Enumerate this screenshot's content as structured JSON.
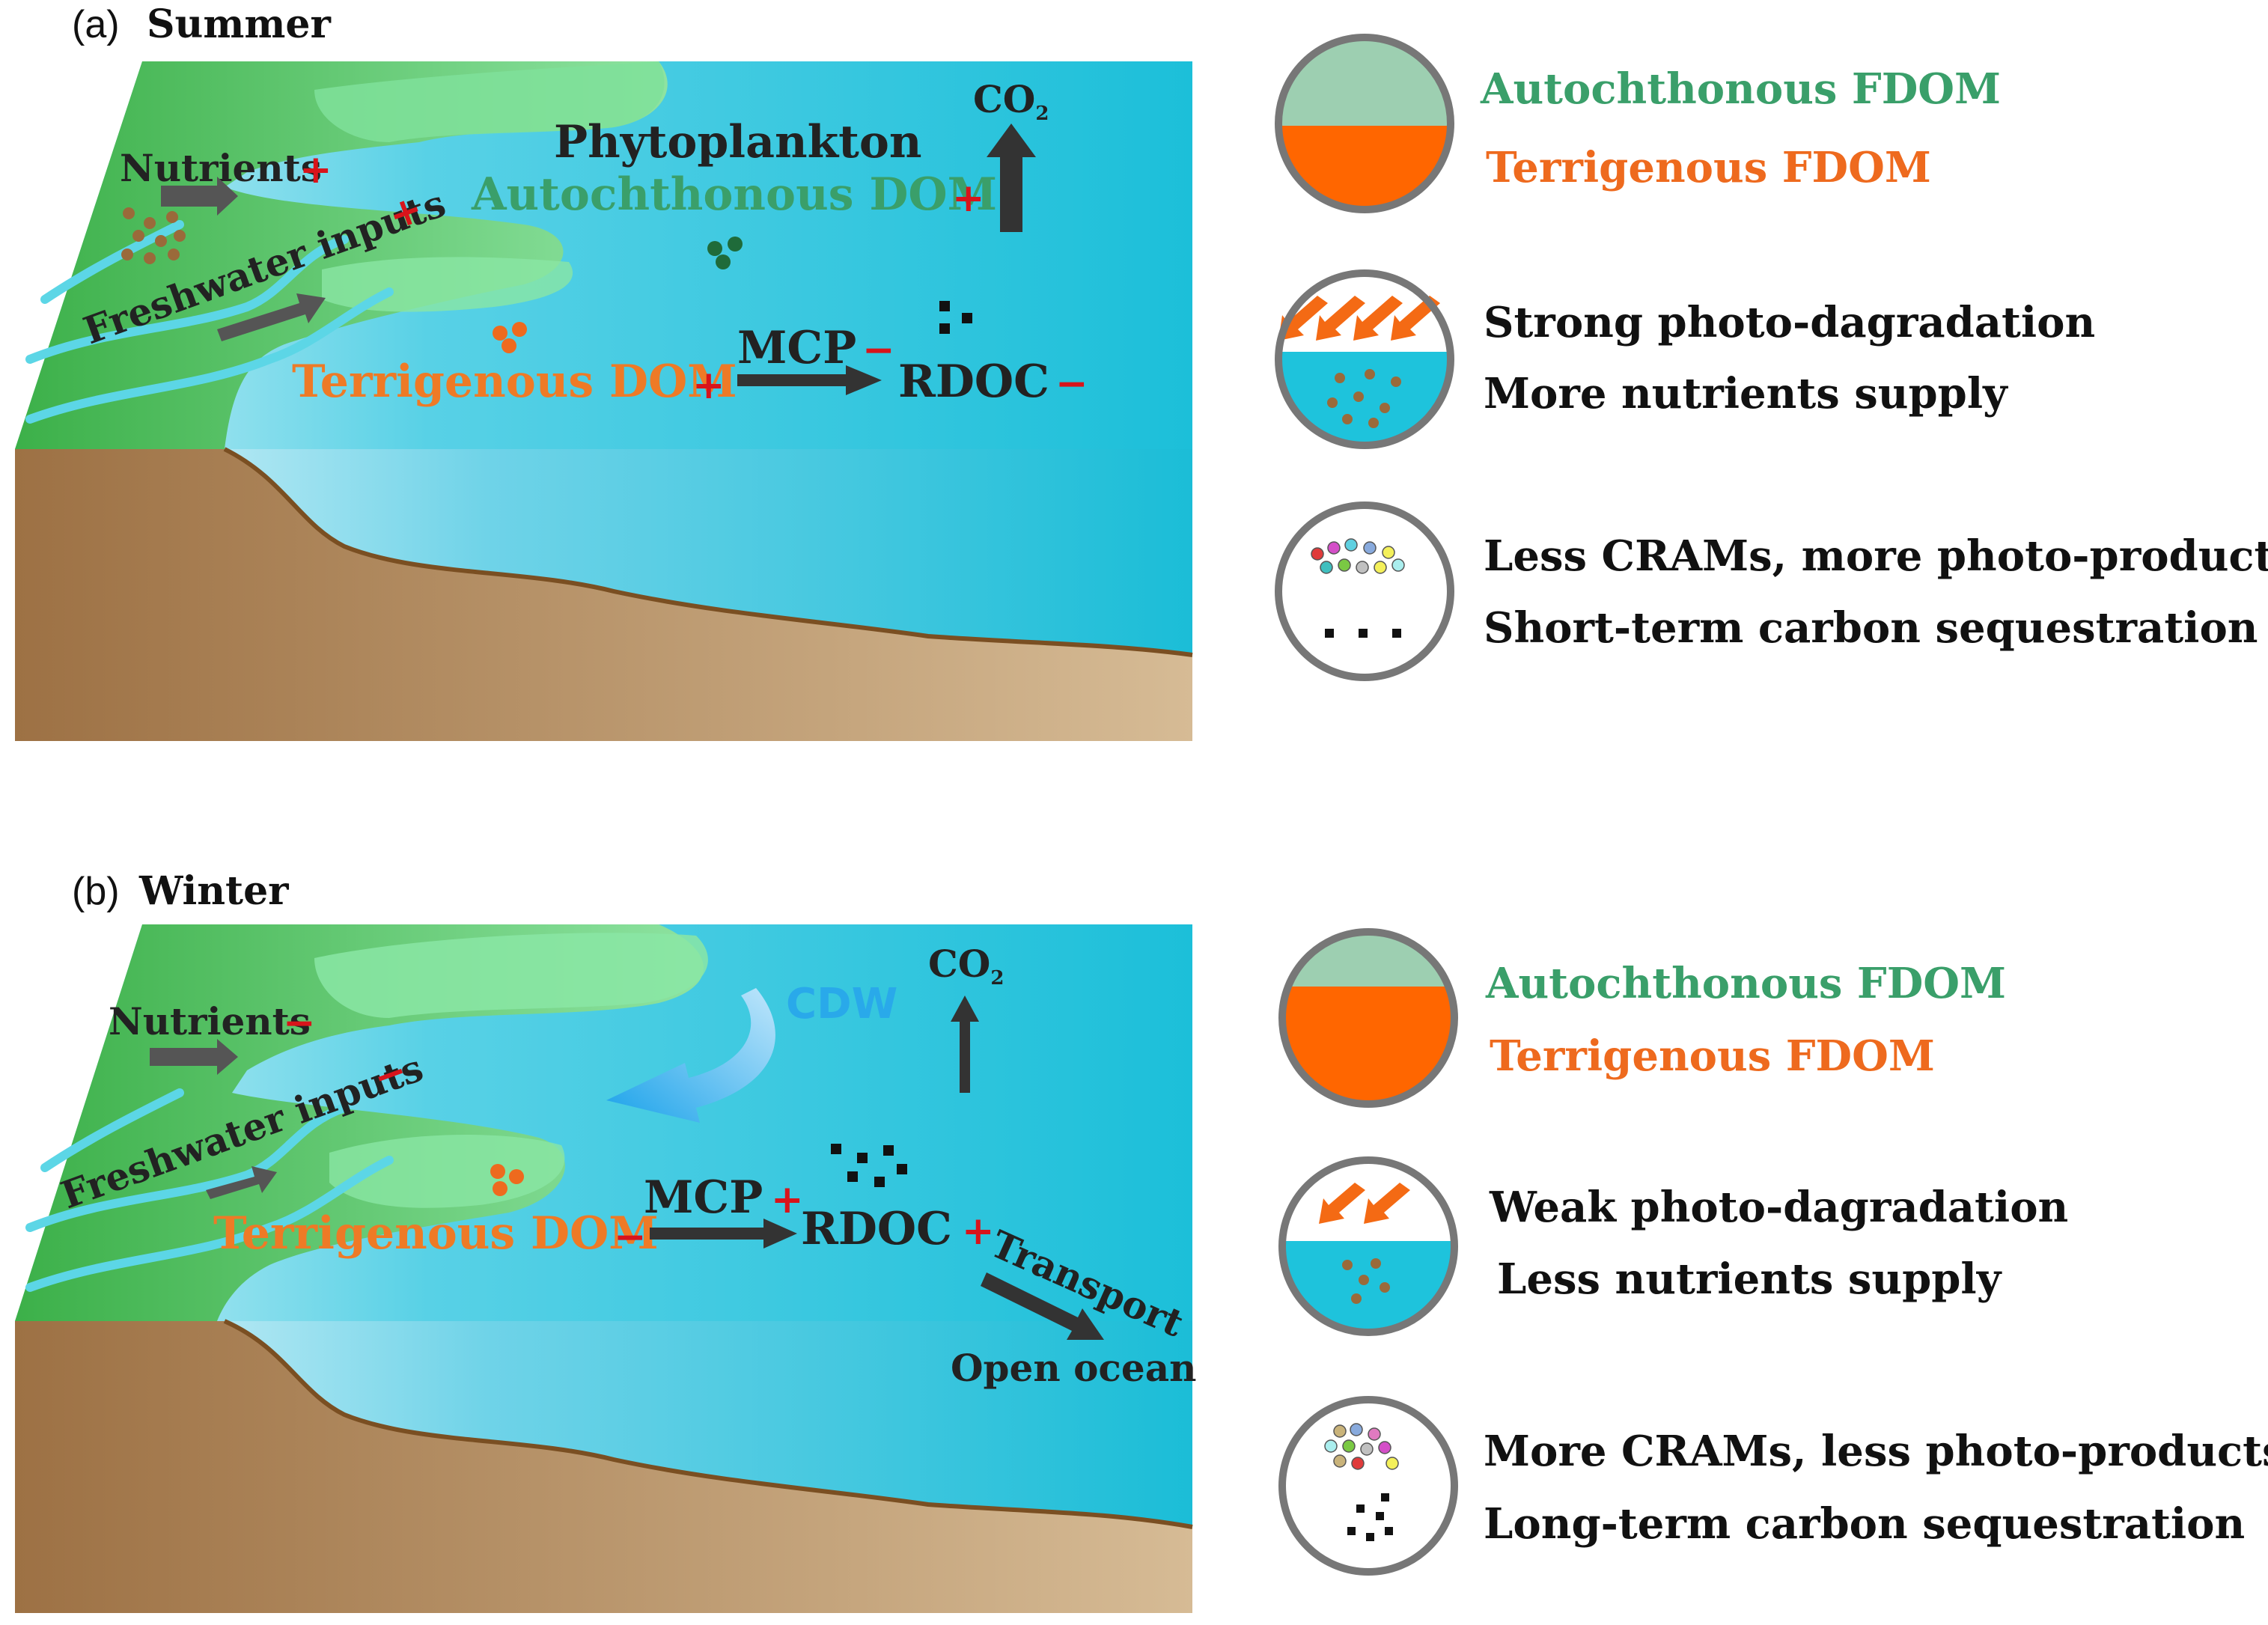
{
  "panel_a": {
    "tag": "(a)",
    "title": "Summer",
    "nutrients": "Nutrients",
    "nutrients_sign": "+",
    "freshwater": "Freshwater inputs",
    "freshwater_sign": "+",
    "phytoplankton": "Phytoplankton",
    "autochthonous_dom": "Autochthonous DOM",
    "autochthonous_sign": "+",
    "co2": "CO",
    "co2_sub": "2",
    "terrigenous_dom": "Terrigenous DOM",
    "terrigenous_sign": "+",
    "mcp": "MCP",
    "mcp_sign": "−",
    "rdoc": "RDOC",
    "rdoc_sign": "−"
  },
  "panel_b": {
    "tag": "(b)",
    "title": "Winter",
    "nutrients": "Nutrients",
    "nutrients_sign": "−",
    "freshwater": "Freshwater inputs",
    "freshwater_sign": "−",
    "cdw": "CDW",
    "co2": "CO",
    "co2_sub": "2",
    "terrigenous_dom": "Terrigenous DOM",
    "terrigenous_sign": "−",
    "mcp": "MCP",
    "mcp_sign": "+",
    "rdoc": "RDOC",
    "rdoc_sign": "+",
    "transport": "Transport",
    "open_ocean": "Open ocean"
  },
  "legend_a": {
    "autochthonous_fdom": "Autochthonous FDOM",
    "terrigenous_fdom": "Terrigenous FDOM",
    "photo_line1": "Strong photo-dagradation",
    "photo_line2": "More nutrients supply",
    "crams_line1": "Less CRAMs, more photo-products",
    "crams_line2": "Short-term carbon sequestration"
  },
  "legend_b": {
    "autochthonous_fdom": "Autochthonous FDOM",
    "terrigenous_fdom": "Terrigenous FDOM",
    "photo_line1": "Weak photo-dagradation",
    "photo_line2": "Less nutrients supply",
    "crams_line1": "More CRAMs, less photo-products",
    "crams_line2": "Long-term carbon sequestration"
  },
  "colors": {
    "ocean": "#1ec3dc",
    "land": "#5ec86e",
    "sediment": "#a57a4c",
    "terrigenous": "#ff6600",
    "autochthonous": "#9dcfb1",
    "sign_red": "#d8141b"
  }
}
